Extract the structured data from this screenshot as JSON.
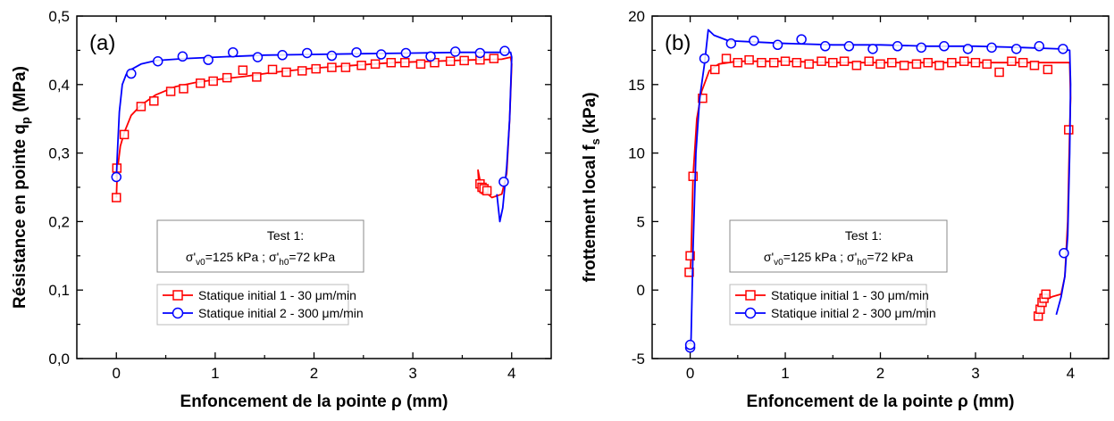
{
  "chart_data": [
    {
      "type": "line",
      "panel_label": "(a)",
      "xlabel": "Enfoncement de la pointe ρ (mm)",
      "ylabel": "Résistance en pointe q",
      "ylabel_sub": "p",
      "ylabel_unit": " (MPa)",
      "xlim": [
        -0.4,
        4.4
      ],
      "ylim": [
        0.0,
        0.5
      ],
      "xticks": [
        0,
        1,
        2,
        3,
        4
      ],
      "xtick_labels": [
        "0",
        "1",
        "2",
        "3",
        "4"
      ],
      "yticks": [
        0.0,
        0.1,
        0.2,
        0.3,
        0.4,
        0.5
      ],
      "ytick_labels": [
        "0,0",
        "0,1",
        "0,2",
        "0,3",
        "0,4",
        "0,5"
      ],
      "grid": false,
      "info_box": {
        "line1": "Test 1:",
        "line2_parts": [
          "σ'",
          "v0",
          "=125 kPa ; σ'",
          "h0",
          "=72 kPa"
        ]
      },
      "legend_position": "bottom-center",
      "series": [
        {
          "name": "Statique initial 1  - 30 μm/min",
          "color": "#ff0000",
          "marker": "square",
          "values": [
            [
              0.0,
              0.235
            ],
            [
              0.005,
              0.255
            ],
            [
              0.015,
              0.28
            ],
            [
              0.04,
              0.31
            ],
            [
              0.08,
              0.33
            ],
            [
              0.15,
              0.355
            ],
            [
              0.25,
              0.37
            ],
            [
              0.4,
              0.385
            ],
            [
              0.6,
              0.397
            ],
            [
              0.8,
              0.403
            ],
            [
              1.0,
              0.407
            ],
            [
              1.3,
              0.412
            ],
            [
              1.6,
              0.418
            ],
            [
              2.0,
              0.424
            ],
            [
              2.4,
              0.428
            ],
            [
              2.8,
              0.432
            ],
            [
              3.2,
              0.434
            ],
            [
              3.6,
              0.436
            ],
            [
              3.9,
              0.437
            ],
            [
              3.99,
              0.44
            ],
            [
              4.0,
              0.43
            ],
            [
              3.98,
              0.35
            ],
            [
              3.95,
              0.27
            ],
            [
              3.9,
              0.24
            ],
            [
              3.8,
              0.235
            ],
            [
              3.72,
              0.245
            ],
            [
              3.68,
              0.26
            ],
            [
              3.66,
              0.275
            ],
            [
              3.67,
              0.25
            ],
            [
              3.7,
              0.24
            ]
          ],
          "marker_points": [
            [
              0.0,
              0.235
            ],
            [
              0.005,
              0.278
            ],
            [
              0.08,
              0.327
            ],
            [
              0.25,
              0.368
            ],
            [
              0.38,
              0.376
            ],
            [
              0.55,
              0.39
            ],
            [
              0.68,
              0.394
            ],
            [
              0.85,
              0.402
            ],
            [
              0.98,
              0.405
            ],
            [
              1.12,
              0.41
            ],
            [
              1.28,
              0.421
            ],
            [
              1.42,
              0.411
            ],
            [
              1.58,
              0.422
            ],
            [
              1.72,
              0.418
            ],
            [
              1.88,
              0.42
            ],
            [
              2.02,
              0.423
            ],
            [
              2.18,
              0.425
            ],
            [
              2.32,
              0.425
            ],
            [
              2.48,
              0.428
            ],
            [
              2.62,
              0.43
            ],
            [
              2.78,
              0.432
            ],
            [
              2.92,
              0.432
            ],
            [
              3.08,
              0.43
            ],
            [
              3.22,
              0.432
            ],
            [
              3.38,
              0.434
            ],
            [
              3.52,
              0.435
            ],
            [
              3.68,
              0.436
            ],
            [
              3.82,
              0.438
            ],
            [
              3.68,
              0.255
            ],
            [
              3.7,
              0.25
            ],
            [
              3.72,
              0.248
            ],
            [
              3.75,
              0.245
            ]
          ]
        },
        {
          "name": "Statique initial 2 - 300 μm/min",
          "color": "#0000ff",
          "marker": "circle",
          "values": [
            [
              0.0,
              0.265
            ],
            [
              0.01,
              0.3
            ],
            [
              0.03,
              0.36
            ],
            [
              0.06,
              0.4
            ],
            [
              0.1,
              0.415
            ],
            [
              0.15,
              0.422
            ],
            [
              0.25,
              0.43
            ],
            [
              0.4,
              0.435
            ],
            [
              0.7,
              0.438
            ],
            [
              1.0,
              0.44
            ],
            [
              1.5,
              0.443
            ],
            [
              2.0,
              0.444
            ],
            [
              2.5,
              0.445
            ],
            [
              3.0,
              0.446
            ],
            [
              3.5,
              0.447
            ],
            [
              3.9,
              0.447
            ],
            [
              3.99,
              0.447
            ],
            [
              4.0,
              0.44
            ],
            [
              3.98,
              0.35
            ],
            [
              3.95,
              0.28
            ],
            [
              3.91,
              0.22
            ],
            [
              3.88,
              0.2
            ],
            [
              3.85,
              0.24
            ]
          ],
          "marker_points": [
            [
              0.0,
              0.265
            ],
            [
              0.15,
              0.416
            ],
            [
              0.42,
              0.434
            ],
            [
              0.67,
              0.441
            ],
            [
              0.93,
              0.436
            ],
            [
              1.18,
              0.447
            ],
            [
              1.43,
              0.44
            ],
            [
              1.68,
              0.443
            ],
            [
              1.93,
              0.446
            ],
            [
              2.18,
              0.442
            ],
            [
              2.43,
              0.447
            ],
            [
              2.68,
              0.444
            ],
            [
              2.93,
              0.446
            ],
            [
              3.18,
              0.441
            ],
            [
              3.43,
              0.448
            ],
            [
              3.68,
              0.446
            ],
            [
              3.93,
              0.449
            ],
            [
              3.92,
              0.258
            ]
          ]
        }
      ]
    },
    {
      "type": "line",
      "panel_label": "(b)",
      "xlabel": "Enfoncement de la pointe ρ (mm)",
      "ylabel": "frottement local f",
      "ylabel_sub": "s",
      "ylabel_unit": " (kPa)",
      "xlim": [
        -0.4,
        4.4
      ],
      "ylim": [
        -5,
        20
      ],
      "xticks": [
        0,
        1,
        2,
        3,
        4
      ],
      "xtick_labels": [
        "0",
        "1",
        "2",
        "3",
        "4"
      ],
      "yticks": [
        -5,
        0,
        5,
        10,
        15,
        20
      ],
      "ytick_labels": [
        "-5",
        "0",
        "5",
        "10",
        "15",
        "20"
      ],
      "grid": false,
      "info_box": {
        "line1": "Test 1:",
        "line2_parts": [
          "σ'",
          "v0",
          "=125 kPa ; σ'",
          "h0",
          "=72 kPa"
        ]
      },
      "legend_position": "bottom-center",
      "series": [
        {
          "name": "Statique initial 1  - 30 μm/min",
          "color": "#ff0000",
          "marker": "square",
          "values": [
            [
              0.0,
              1.3
            ],
            [
              0.01,
              2.5
            ],
            [
              0.03,
              8.3
            ],
            [
              0.07,
              12.5
            ],
            [
              0.12,
              14.5
            ],
            [
              0.2,
              16.0
            ],
            [
              0.3,
              16.5
            ],
            [
              0.5,
              16.7
            ],
            [
              1.0,
              16.7
            ],
            [
              1.5,
              16.6
            ],
            [
              2.0,
              16.6
            ],
            [
              2.5,
              16.6
            ],
            [
              3.0,
              16.6
            ],
            [
              3.5,
              16.6
            ],
            [
              3.9,
              16.6
            ],
            [
              3.99,
              16.6
            ],
            [
              4.0,
              14.0
            ],
            [
              3.99,
              11.7
            ],
            [
              3.97,
              5.0
            ],
            [
              3.94,
              1.0
            ],
            [
              3.9,
              -0.3
            ],
            [
              3.8,
              -0.5
            ],
            [
              3.72,
              -0.8
            ],
            [
              3.68,
              -1.5
            ],
            [
              3.66,
              -2.0
            ]
          ],
          "marker_points": [
            [
              -0.01,
              1.3
            ],
            [
              0.0,
              2.5
            ],
            [
              0.03,
              8.3
            ],
            [
              0.13,
              14.0
            ],
            [
              0.26,
              16.1
            ],
            [
              0.38,
              16.9
            ],
            [
              0.5,
              16.6
            ],
            [
              0.62,
              16.8
            ],
            [
              0.75,
              16.6
            ],
            [
              0.88,
              16.6
            ],
            [
              1.0,
              16.7
            ],
            [
              1.12,
              16.6
            ],
            [
              1.25,
              16.5
            ],
            [
              1.38,
              16.7
            ],
            [
              1.5,
              16.6
            ],
            [
              1.62,
              16.7
            ],
            [
              1.75,
              16.4
            ],
            [
              1.88,
              16.7
            ],
            [
              2.0,
              16.5
            ],
            [
              2.12,
              16.6
            ],
            [
              2.25,
              16.4
            ],
            [
              2.38,
              16.5
            ],
            [
              2.5,
              16.6
            ],
            [
              2.62,
              16.4
            ],
            [
              2.75,
              16.6
            ],
            [
              2.88,
              16.7
            ],
            [
              3.0,
              16.6
            ],
            [
              3.12,
              16.5
            ],
            [
              3.25,
              15.9
            ],
            [
              3.38,
              16.7
            ],
            [
              3.5,
              16.6
            ],
            [
              3.62,
              16.4
            ],
            [
              3.76,
              16.1
            ],
            [
              3.98,
              11.7
            ],
            [
              3.66,
              -1.9
            ],
            [
              3.68,
              -1.4
            ],
            [
              3.7,
              -0.9
            ],
            [
              3.72,
              -0.6
            ],
            [
              3.74,
              -0.3
            ]
          ]
        },
        {
          "name": "Statique initial 2 - 300 μm/min",
          "color": "#0000ff",
          "marker": "circle",
          "values": [
            [
              0.0,
              -4.2
            ],
            [
              0.01,
              -3.5
            ],
            [
              0.03,
              3.0
            ],
            [
              0.06,
              10.0
            ],
            [
              0.1,
              14.0
            ],
            [
              0.15,
              16.5
            ],
            [
              0.19,
              19.0
            ],
            [
              0.25,
              18.6
            ],
            [
              0.4,
              18.2
            ],
            [
              0.7,
              18.1
            ],
            [
              1.0,
              18.0
            ],
            [
              1.5,
              17.9
            ],
            [
              2.0,
              17.9
            ],
            [
              2.5,
              17.8
            ],
            [
              3.0,
              17.8
            ],
            [
              3.5,
              17.7
            ],
            [
              3.9,
              17.6
            ],
            [
              3.99,
              17.5
            ],
            [
              4.0,
              15.0
            ],
            [
              3.99,
              10.0
            ],
            [
              3.97,
              4.0
            ],
            [
              3.94,
              1.0
            ],
            [
              3.9,
              -0.5
            ],
            [
              3.85,
              -1.8
            ]
          ],
          "marker_points": [
            [
              0.0,
              -4.2
            ],
            [
              0.0,
              -4.0
            ],
            [
              0.15,
              16.9
            ],
            [
              0.43,
              18.0
            ],
            [
              0.67,
              18.2
            ],
            [
              0.92,
              17.9
            ],
            [
              1.17,
              18.3
            ],
            [
              1.42,
              17.8
            ],
            [
              1.67,
              17.8
            ],
            [
              1.92,
              17.6
            ],
            [
              2.18,
              17.8
            ],
            [
              2.43,
              17.7
            ],
            [
              2.67,
              17.8
            ],
            [
              2.92,
              17.6
            ],
            [
              3.17,
              17.7
            ],
            [
              3.43,
              17.6
            ],
            [
              3.67,
              17.8
            ],
            [
              3.92,
              17.6
            ],
            [
              3.93,
              2.7
            ]
          ]
        }
      ]
    }
  ]
}
